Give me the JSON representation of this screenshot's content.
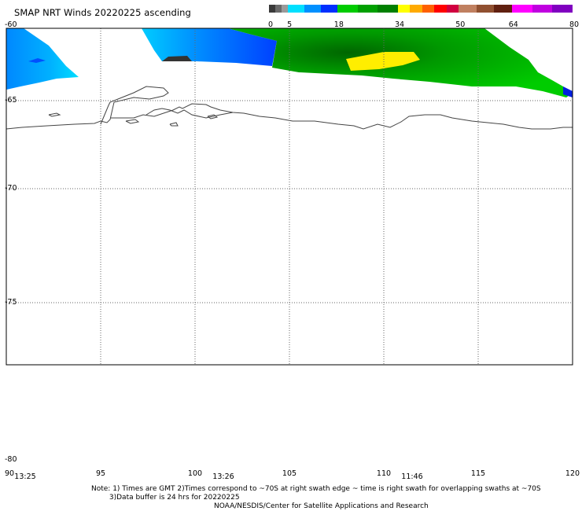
{
  "title": "SMAP NRT Winds 20220225 ascending",
  "colorbar": {
    "tick_labels": [
      "0",
      "5",
      "18",
      "34",
      "50",
      "64",
      "80"
    ],
    "segments": [
      {
        "from": 0,
        "to": 5,
        "colors": [
          "#3a3a3a",
          "#6a6a6a",
          "#9a9a9a"
        ]
      },
      {
        "from": 5,
        "to": 18,
        "colors": [
          "#00e0ff",
          "#0090ff",
          "#0030ff"
        ]
      },
      {
        "from": 18,
        "to": 34,
        "colors": [
          "#00cc00",
          "#00a000",
          "#008000"
        ]
      },
      {
        "from": 34,
        "to": 50,
        "colors": [
          "#ffff00",
          "#ffaa00",
          "#ff6000",
          "#ff0000",
          "#d00040"
        ]
      },
      {
        "from": 50,
        "to": 64,
        "colors": [
          "#c08060",
          "#905030",
          "#602010"
        ]
      },
      {
        "from": 64,
        "to": 80,
        "colors": [
          "#ff00ff",
          "#c000e0",
          "#8000c0"
        ]
      }
    ]
  },
  "map": {
    "lat_labels": [
      "-60",
      "-65",
      "-70",
      "-75",
      "-80"
    ],
    "lon_labels": [
      "90",
      "95",
      "100",
      "105",
      "110",
      "115",
      "120"
    ],
    "lat_range": [
      -80,
      -60
    ],
    "lon_range": [
      90,
      120
    ],
    "grid_style": "dotted",
    "swath_colors": {
      "calm": "#00ccff",
      "moderate": "#0044ff",
      "strong": "#00bb00",
      "gale": "#ffee00",
      "land_mask": "#333333"
    }
  },
  "times": [
    {
      "label": "13:25",
      "lon": 91
    },
    {
      "label": "13:26",
      "lon": 101.5
    },
    {
      "label": "11:46",
      "lon": 111.5
    }
  ],
  "note_lines": [
    "Note: 1) Times are GMT 2)Times correspond to ~70S at right swath edge ~ time is right swath for overlapping swaths at ~70S",
    "        3)Data buffer is 24 hrs for 20220225"
  ],
  "credit": "NOAA/NESDIS/Center for Satellite Applications and Research"
}
